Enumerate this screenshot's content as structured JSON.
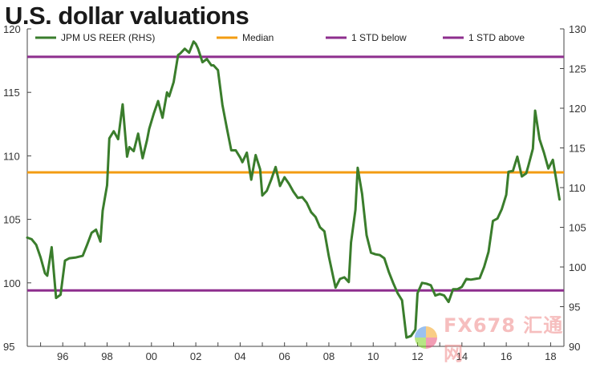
{
  "chart_data": {
    "type": "line",
    "title": "U.S. dollar valuations",
    "legend": {
      "placement": "top",
      "entries": [
        {
          "label": "JPM US REER (RHS)",
          "color": "#3a7d2c"
        },
        {
          "label": "Median",
          "color": "#f39c12"
        },
        {
          "label": "1 STD below",
          "color": "#8e2e8e"
        },
        {
          "label": "1 STD above",
          "color": "#8e2e8e"
        }
      ]
    },
    "left_axis": {
      "ylim": [
        95,
        120
      ],
      "ticks": [
        "95",
        "100",
        "105",
        "110",
        "115",
        "120"
      ]
    },
    "right_axis": {
      "ylim": [
        90,
        130
      ],
      "ticks": [
        "90",
        "95",
        "100",
        "105",
        "110",
        "115",
        "120",
        "125",
        "130"
      ]
    },
    "x_axis": {
      "xlim": [
        1994.4,
        2018.6
      ],
      "ticks": [
        {
          "value": 1996,
          "label": "96"
        },
        {
          "value": 1998,
          "label": "98"
        },
        {
          "value": 2000,
          "label": "00"
        },
        {
          "value": 2002,
          "label": "02"
        },
        {
          "value": 2004,
          "label": "04"
        },
        {
          "value": 2006,
          "label": "06"
        },
        {
          "value": 2008,
          "label": "08"
        },
        {
          "value": 2010,
          "label": "10"
        },
        {
          "value": 2012,
          "label": "12"
        },
        {
          "value": 2014,
          "label": "14"
        },
        {
          "value": 2016,
          "label": "16"
        },
        {
          "value": 2018,
          "label": "18"
        }
      ]
    },
    "grid": false,
    "reference_lines": [
      {
        "name": "1 STD above",
        "axis": "left",
        "value": 117.8,
        "color": "#8e2e8e"
      },
      {
        "name": "Median",
        "axis": "left",
        "value": 108.7,
        "color": "#f39c12"
      },
      {
        "name": "1 STD below",
        "axis": "left",
        "value": 99.4,
        "color": "#8e2e8e"
      }
    ],
    "series": [
      {
        "name": "JPM US REER (RHS)",
        "axis": "right",
        "color": "#3a7d2c",
        "x": [
          1994.4,
          1994.6,
          1994.8,
          1995.0,
          1995.2,
          1995.3,
          1995.5,
          1995.7,
          1995.9,
          1996.1,
          1996.3,
          1996.6,
          1996.9,
          1997.1,
          1997.3,
          1997.5,
          1997.7,
          1997.8,
          1998.0,
          1998.1,
          1998.3,
          1998.5,
          1998.7,
          1998.9,
          1999.0,
          1999.2,
          1999.4,
          1999.6,
          1999.8,
          1999.9,
          2000.1,
          2000.3,
          2000.5,
          2000.7,
          2000.8,
          2001.0,
          2001.2,
          2001.3,
          2001.5,
          2001.7,
          2001.9,
          2002.0,
          2002.1,
          2002.3,
          2002.5,
          2002.7,
          2002.8,
          2003.0,
          2003.2,
          2003.4,
          2003.6,
          2003.8,
          2004.0,
          2004.1,
          2004.3,
          2004.5,
          2004.7,
          2004.9,
          2005.0,
          2005.2,
          2005.4,
          2005.6,
          2005.8,
          2006.0,
          2006.2,
          2006.4,
          2006.6,
          2006.8,
          2007.0,
          2007.2,
          2007.4,
          2007.6,
          2007.8,
          2008.0,
          2008.2,
          2008.3,
          2008.5,
          2008.7,
          2008.9,
          2009.0,
          2009.2,
          2009.3,
          2009.5,
          2009.7,
          2009.9,
          2010.1,
          2010.3,
          2010.5,
          2010.7,
          2010.9,
          2011.1,
          2011.3,
          2011.5,
          2011.7,
          2011.9,
          2012.0,
          2012.2,
          2012.4,
          2012.6,
          2012.8,
          2013.0,
          2013.2,
          2013.4,
          2013.6,
          2013.8,
          2014.0,
          2014.2,
          2014.4,
          2014.6,
          2014.8,
          2015.0,
          2015.2,
          2015.4,
          2015.6,
          2015.8,
          2016.0,
          2016.1,
          2016.3,
          2016.5,
          2016.7,
          2016.9,
          2017.0,
          2017.2,
          2017.3,
          2017.5,
          2017.7,
          2017.9,
          2018.1,
          2018.2,
          2018.4
        ],
        "y": [
          103.7,
          103.5,
          102.8,
          101.2,
          99.2,
          98.9,
          102.5,
          96.1,
          96.5,
          100.8,
          101.1,
          101.2,
          101.4,
          102.8,
          104.3,
          104.7,
          103.2,
          107.1,
          110.3,
          116.2,
          117.1,
          116.1,
          120.5,
          113.9,
          115.1,
          114.6,
          116.8,
          113.7,
          116.0,
          117.4,
          119.3,
          120.9,
          118.8,
          122.0,
          121.5,
          123.3,
          126.7,
          126.9,
          127.5,
          127.0,
          128.4,
          128.1,
          127.5,
          125.8,
          126.2,
          125.4,
          125.4,
          124.8,
          120.4,
          117.5,
          114.7,
          114.7,
          113.8,
          113.2,
          114.4,
          111.0,
          114.1,
          112.3,
          109.0,
          109.6,
          111.0,
          112.6,
          110.2,
          111.3,
          110.5,
          109.5,
          108.7,
          108.8,
          108.1,
          106.9,
          106.3,
          105.0,
          104.5,
          101.3,
          98.7,
          97.4,
          98.5,
          98.7,
          98.1,
          103.1,
          107.2,
          112.5,
          109.2,
          104.0,
          101.8,
          101.6,
          101.5,
          101.1,
          99.4,
          98.0,
          96.7,
          95.8,
          91.1,
          91.3,
          92.1,
          96.7,
          98.0,
          97.9,
          97.7,
          96.4,
          96.6,
          96.4,
          95.6,
          97.2,
          97.2,
          97.5,
          98.5,
          98.4,
          98.5,
          98.6,
          100.0,
          101.9,
          105.8,
          106.1,
          107.3,
          109.1,
          112.0,
          112.1,
          113.9,
          111.4,
          111.8,
          112.8,
          114.9,
          119.7,
          116.1,
          114.4,
          112.4,
          113.5,
          111.9,
          108.5
        ]
      }
    ]
  },
  "watermark": {
    "text": "FX678 汇通网"
  }
}
